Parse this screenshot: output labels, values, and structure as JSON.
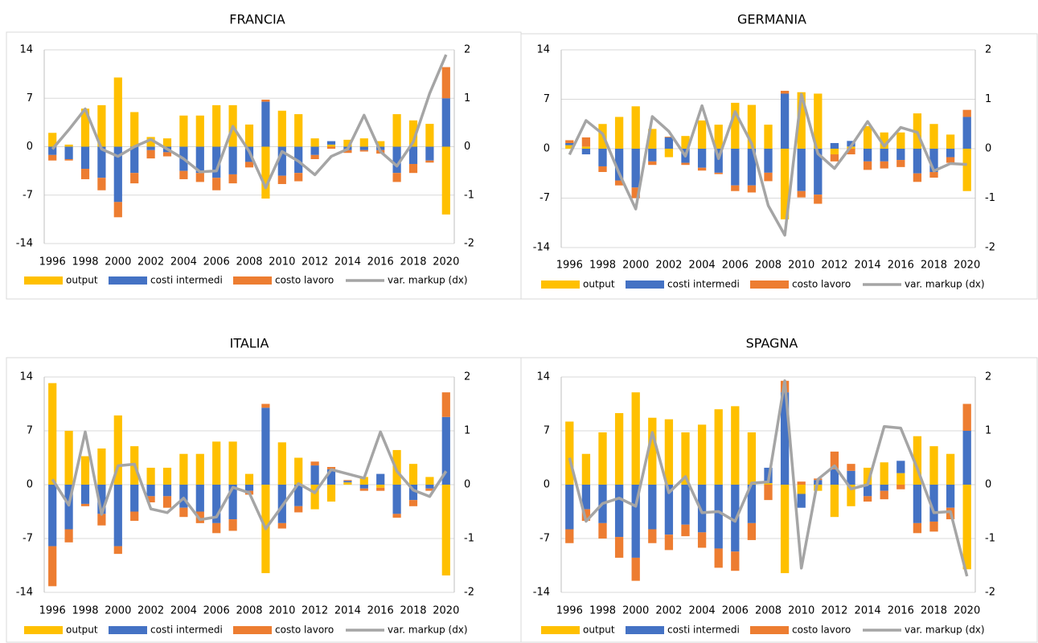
{
  "chart_data": [
    {
      "type": "bar",
      "title": "FRANCIA",
      "categories": [
        "1996",
        null,
        "1998",
        null,
        "2000",
        null,
        "2002",
        null,
        "2004",
        null,
        "2006",
        null,
        "2008",
        null,
        "2010",
        null,
        "2012",
        null,
        "2014",
        null,
        "2016",
        null,
        "2018",
        null,
        "2020"
      ],
      "series": [
        {
          "name": "output",
          "color": "#ffc000",
          "values": [
            2,
            0.3,
            5.5,
            6,
            10,
            5,
            1.4,
            1.2,
            4.5,
            4.5,
            6,
            6,
            3.2,
            -7.5,
            5.2,
            4.7,
            1.2,
            0.3,
            1,
            1.2,
            0.8,
            4.7,
            3.8,
            3.3,
            -9.8
          ]
        },
        {
          "name": "costi intermedi",
          "color": "#4472c4",
          "values": [
            -1.2,
            -1.8,
            -3.2,
            -4.5,
            -8,
            -3.8,
            -0.5,
            -0.8,
            -3.5,
            -3.8,
            -4.5,
            -4,
            -2.2,
            6.5,
            -4.2,
            -3.8,
            -1.2,
            0.5,
            -0.5,
            -0.5,
            -0.5,
            -3.8,
            -2.5,
            -2,
            7
          ]
        },
        {
          "name": "costo lavoro",
          "color": "#ed7d31",
          "values": [
            -0.8,
            -0.2,
            -1.5,
            -1.8,
            -2.2,
            -1.5,
            -1.2,
            -0.6,
            -1.2,
            -1.3,
            -1.8,
            -1.3,
            -0.8,
            0.3,
            -1.2,
            -1.2,
            -0.6,
            -0.3,
            -0.4,
            -0.2,
            -0.5,
            -1.3,
            -1.3,
            -0.3,
            4.5
          ]
        },
        {
          "name": "var. markup (dx)",
          "color": "#a5a5a5",
          "type": "line",
          "axis": "y2",
          "values": [
            -0.05,
            0.35,
            0.78,
            -0.05,
            -0.2,
            0,
            0.15,
            -0.05,
            -0.25,
            -0.52,
            -0.5,
            0.42,
            -0.1,
            -0.85,
            -0.1,
            -0.3,
            -0.58,
            -0.2,
            -0.05,
            0.65,
            -0.1,
            -0.4,
            0.1,
            1.1,
            1.9
          ]
        }
      ],
      "ylim": [
        -14,
        14
      ],
      "yticks": [
        -14,
        -7,
        0,
        7,
        14
      ],
      "y2lim": [
        -2,
        2
      ],
      "y2ticks": [
        -2,
        -1,
        0,
        1,
        2
      ],
      "grid": true,
      "legend": "bottom"
    },
    {
      "type": "bar",
      "title": "GERMANIA",
      "categories": [
        "1996",
        null,
        "1998",
        null,
        "2000",
        null,
        "2002",
        null,
        "2004",
        null,
        "2006",
        null,
        "2008",
        null,
        "2010",
        null,
        "2012",
        null,
        "2014",
        null,
        "2016",
        null,
        "2018",
        null,
        "2020"
      ],
      "series": [
        {
          "name": "output",
          "color": "#ffc000",
          "values": [
            0.5,
            0.3,
            3.5,
            4.5,
            6,
            2.8,
            -1.2,
            1.8,
            4,
            3.4,
            6.5,
            6.2,
            3.4,
            -10,
            8,
            7.8,
            -0.8,
            0.3,
            3.2,
            2.3,
            2.3,
            5,
            3.5,
            2,
            -6
          ]
        },
        {
          "name": "costi intermedi",
          "color": "#4472c4",
          "values": [
            0.3,
            -0.8,
            -2.5,
            -4.5,
            -5.5,
            -1.8,
            1.6,
            -2,
            -2.7,
            -3.4,
            -5.2,
            -5.2,
            -3.4,
            7.8,
            -6,
            -6.5,
            0.8,
            0.8,
            -1.8,
            -1.8,
            -1.6,
            -3.5,
            -3.3,
            -1.2,
            4.5
          ]
        },
        {
          "name": "costo lavoro",
          "color": "#ed7d31",
          "values": [
            0.4,
            1.3,
            -0.8,
            -0.7,
            -1.5,
            -0.5,
            0.1,
            -0.3,
            -0.4,
            -0.2,
            -0.8,
            -1,
            -1.2,
            0.4,
            -0.9,
            -1.3,
            -1,
            -0.8,
            -1.2,
            -1,
            -1,
            -1.2,
            -0.8,
            -0.8,
            1
          ]
        },
        {
          "name": "var. markup (dx)",
          "color": "#a5a5a5",
          "type": "line",
          "axis": "y2",
          "values": [
            -0.12,
            0.57,
            0.3,
            -0.5,
            -1.22,
            0.65,
            0.35,
            -0.15,
            0.87,
            -0.2,
            0.75,
            0.1,
            -1.15,
            -1.75,
            1.1,
            -0.1,
            -0.4,
            0.05,
            0.55,
            0.05,
            0.43,
            0.33,
            -0.45,
            -0.3,
            -0.32
          ]
        }
      ],
      "ylim": [
        -14,
        14
      ],
      "yticks": [
        -14,
        -7,
        0,
        7,
        14
      ],
      "y2lim": [
        -2,
        2
      ],
      "y2ticks": [
        -2,
        -1,
        0,
        1,
        2
      ],
      "grid": true,
      "legend": "bottom"
    },
    {
      "type": "bar",
      "title": "ITALIA",
      "categories": [
        "1996",
        null,
        "1998",
        null,
        "2000",
        null,
        "2002",
        null,
        "2004",
        null,
        "2006",
        null,
        "2008",
        null,
        "2010",
        null,
        "2012",
        null,
        "2014",
        null,
        "2016",
        null,
        "2018",
        null,
        "2020"
      ],
      "series": [
        {
          "name": "output",
          "color": "#ffc000",
          "values": [
            13.2,
            7,
            3.7,
            4.7,
            9,
            5,
            2.2,
            2.2,
            4,
            4,
            5.6,
            5.6,
            1.4,
            -11.5,
            5.5,
            3.5,
            -3.2,
            -2.2,
            0.3,
            1,
            -0.4,
            4.5,
            2.7,
            1,
            -11.8
          ]
        },
        {
          "name": "costi intermedi",
          "color": "#4472c4",
          "values": [
            -8,
            -5.8,
            -2.5,
            -3.8,
            -8,
            -3.5,
            -1.5,
            -1.5,
            -3,
            -3.5,
            -5,
            -4.5,
            -0.8,
            10,
            -5,
            -2.8,
            2.5,
            2,
            0.2,
            -0.5,
            1.4,
            -3.8,
            -2,
            -0.5,
            8.8
          ]
        },
        {
          "name": "costo lavoro",
          "color": "#ed7d31",
          "values": [
            -5.2,
            -1.7,
            -0.3,
            -1.5,
            -1,
            -1.2,
            -0.8,
            -1.5,
            -1.2,
            -1.5,
            -1.3,
            -1.5,
            -0.5,
            0.5,
            -0.7,
            -0.8,
            0.5,
            0.3,
            0.1,
            -0.3,
            -0.4,
            -0.5,
            -0.8,
            -0.3,
            3.2
          ]
        },
        {
          "name": "var. markup (dx)",
          "color": "#a5a5a5",
          "type": "line",
          "axis": "y2",
          "values": [
            0.1,
            -0.38,
            0.98,
            -0.55,
            0.35,
            0.38,
            -0.45,
            -0.52,
            -0.25,
            -0.65,
            -0.6,
            -0.05,
            -0.15,
            -0.82,
            -0.4,
            0.02,
            -0.15,
            0.28,
            0.2,
            0.12,
            0.98,
            0.25,
            -0.1,
            -0.22,
            0.25
          ]
        }
      ],
      "ylim": [
        -14,
        14
      ],
      "yticks": [
        -14,
        -7,
        0,
        7,
        14
      ],
      "y2lim": [
        -2,
        2
      ],
      "y2ticks": [
        -2,
        -1,
        0,
        1,
        2
      ],
      "grid": true,
      "legend": "bottom"
    },
    {
      "type": "bar",
      "title": "SPAGNA",
      "categories": [
        "1996",
        null,
        "1998",
        null,
        "2000",
        null,
        "2002",
        null,
        "2004",
        null,
        "2006",
        null,
        "2008",
        null,
        "2010",
        null,
        "2012",
        null,
        "2014",
        null,
        "2016",
        null,
        "2018",
        null,
        "2020"
      ],
      "series": [
        {
          "name": "output",
          "color": "#ffc000",
          "values": [
            8.2,
            4,
            6.8,
            9.3,
            12,
            8.7,
            8.5,
            6.8,
            7.8,
            9.8,
            10.2,
            6.8,
            0.2,
            -11.5,
            -1.2,
            -0.8,
            -4.2,
            -2.8,
            2.2,
            2.9,
            1.5,
            6.3,
            5,
            4,
            -11
          ]
        },
        {
          "name": "costi intermedi",
          "color": "#4472c4",
          "values": [
            -5.8,
            -3.2,
            -5,
            -6.8,
            -9.5,
            -5.8,
            -6.5,
            -5.2,
            -6.2,
            -8.3,
            -8.7,
            -5,
            2,
            12,
            -1.8,
            0.6,
            2,
            1.8,
            -1.5,
            -0.8,
            1.6,
            -5,
            -4.8,
            -3,
            7
          ]
        },
        {
          "name": "costo lavoro",
          "color": "#ed7d31",
          "values": [
            -1.8,
            -1.5,
            -2,
            -2.7,
            -3,
            -1.8,
            -2,
            -1.5,
            -2,
            -2.5,
            -2.5,
            -2.2,
            -2,
            1.5,
            0.4,
            0.2,
            2.3,
            0.9,
            -0.7,
            -1.1,
            -0.6,
            -1.3,
            -1.3,
            -1.5,
            3.5
          ]
        },
        {
          "name": "var. markup (dx)",
          "color": "#a5a5a5",
          "type": "line",
          "axis": "y2",
          "values": [
            0.5,
            -0.68,
            -0.35,
            -0.25,
            -0.4,
            0.97,
            -0.15,
            0.15,
            -0.52,
            -0.5,
            -0.68,
            0.03,
            0.05,
            1.93,
            -1.55,
            0.1,
            0.35,
            -0.08,
            0,
            1.08,
            1.05,
            0.3,
            -0.52,
            -0.5,
            -1.7
          ]
        }
      ],
      "ylim": [
        -14,
        14
      ],
      "yticks": [
        -14,
        -7,
        0,
        7,
        14
      ],
      "y2lim": [
        -2,
        2
      ],
      "y2ticks": [
        -2,
        -1,
        0,
        1,
        2
      ],
      "grid": true,
      "legend": "bottom"
    }
  ]
}
